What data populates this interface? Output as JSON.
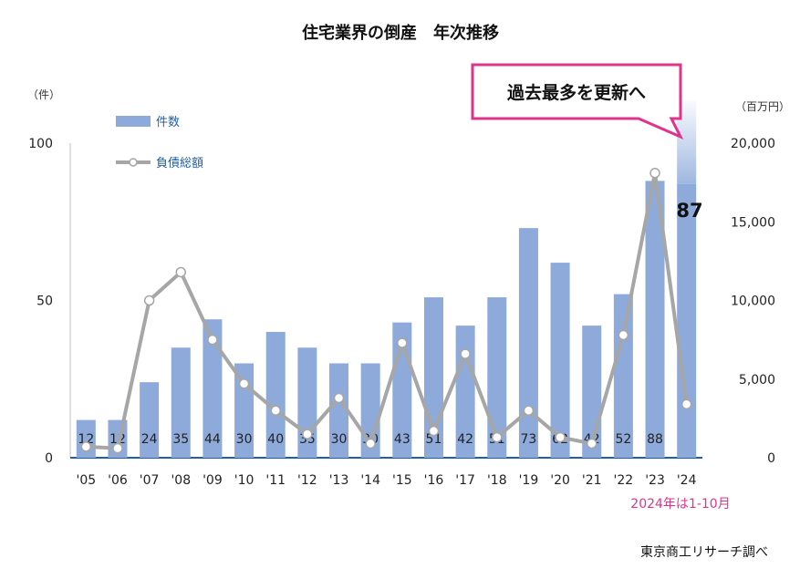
{
  "chart_data": {
    "type": "bar",
    "title": "住宅業界の倒産　年次推移",
    "y_left_unit": "（件）",
    "y_right_unit": "（百万円）",
    "categories": [
      "'05",
      "'06",
      "'07",
      "'08",
      "'09",
      "'10",
      "'11",
      "'12",
      "'13",
      "'14",
      "'15",
      "'16",
      "'17",
      "'18",
      "'19",
      "'20",
      "'21",
      "'22",
      "'23",
      "'24"
    ],
    "series": [
      {
        "name": "件数",
        "kind": "bar",
        "axis": "left",
        "color": "#8eaadb",
        "values": [
          12,
          12,
          24,
          35,
          44,
          30,
          40,
          35,
          30,
          30,
          43,
          51,
          42,
          51,
          73,
          62,
          42,
          52,
          88,
          87
        ],
        "labels": [
          "12",
          "12",
          "24",
          "35",
          "44",
          "30",
          "40",
          "35",
          "30",
          "30",
          "43",
          "51",
          "42",
          "51",
          "73",
          "62",
          "42",
          "52",
          "88",
          "87"
        ]
      },
      {
        "name": "負債総額",
        "kind": "line",
        "axis": "right",
        "color": "#a6a6a6",
        "values": [
          700,
          600,
          10000,
          11800,
          7500,
          4700,
          3000,
          1500,
          3800,
          900,
          7300,
          1700,
          6600,
          1300,
          3000,
          1300,
          900,
          7800,
          18100,
          3400
        ]
      }
    ],
    "ylim_left": [
      0,
      100
    ],
    "yticks_left": [
      "0",
      "50",
      "100"
    ],
    "ylim_right": [
      0,
      20000
    ],
    "yticks_right": [
      "0",
      "5,000",
      "10,000",
      "15,000",
      "20,000"
    ],
    "callout": "過去最多を更新へ",
    "last_bar_label": "87",
    "note": "2024年は1-10月",
    "source": "東京商工リサーチ調べ",
    "legend_position": "top-left",
    "grid": false
  }
}
